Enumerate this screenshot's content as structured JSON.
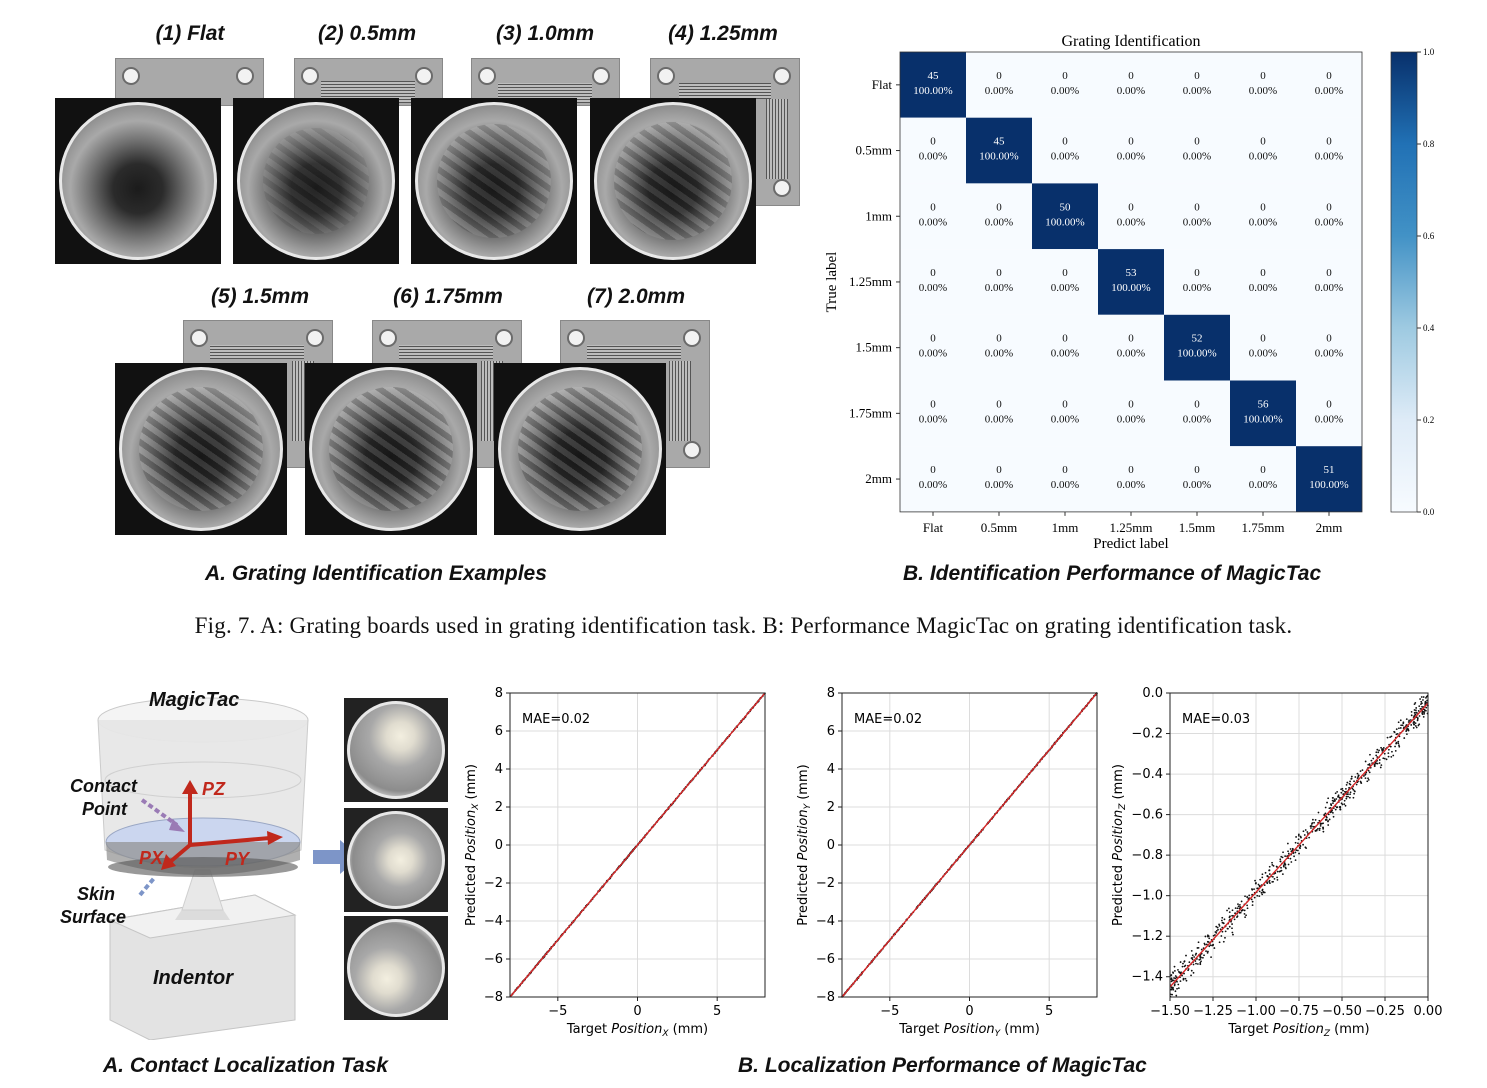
{
  "figure7": {
    "samples_row1": [
      {
        "label": "(1) Flat"
      },
      {
        "label": "(2) 0.5mm"
      },
      {
        "label": "(3) 1.0mm"
      },
      {
        "label": "(4) 1.25mm"
      }
    ],
    "samples_row2": [
      {
        "label": "(5) 1.5mm"
      },
      {
        "label": "(6) 1.75mm"
      },
      {
        "label": "(7) 2.0mm"
      }
    ],
    "panel_a_title": "A. Grating Identification Examples",
    "panel_b_title": "B. Identification Performance of MagicTac",
    "caption": "Fig. 7. A: Grating boards used in grating identification task. B: Performance MagicTac on grating identification task."
  },
  "chart_data": [
    {
      "type": "heatmap",
      "title": "Grating Identification",
      "xlabel": "Predict label",
      "ylabel": "True label",
      "labels": [
        "Flat",
        "0.5mm",
        "1mm",
        "1.25mm",
        "1.5mm",
        "1.75mm",
        "2mm"
      ],
      "counts": [
        [
          45,
          0,
          0,
          0,
          0,
          0,
          0
        ],
        [
          0,
          45,
          0,
          0,
          0,
          0,
          0
        ],
        [
          0,
          0,
          50,
          0,
          0,
          0,
          0
        ],
        [
          0,
          0,
          0,
          53,
          0,
          0,
          0
        ],
        [
          0,
          0,
          0,
          0,
          52,
          0,
          0
        ],
        [
          0,
          0,
          0,
          0,
          0,
          56,
          0
        ],
        [
          0,
          0,
          0,
          0,
          0,
          0,
          51
        ]
      ],
      "diag_percent": "100.00%",
      "off_percent": "0.00%",
      "colorbar_ticks": [
        "0.0",
        "0.2",
        "0.4",
        "0.6",
        "0.8",
        "1.0"
      ],
      "colors": {
        "high": "#08306b",
        "low": "#f7fbff"
      }
    },
    {
      "type": "scatter",
      "annotation": "MAE=0.02",
      "xlabel_pre": "Target ",
      "xlabel_var": "Position",
      "xlabel_sub": "X",
      "xlabel_post": " (mm)",
      "ylabel_pre": "Predicted ",
      "ylabel_var": "Position",
      "ylabel_sub": "X",
      "ylabel_post": " (mm)",
      "xlim": [
        -8,
        8
      ],
      "ylim": [
        -8,
        8
      ],
      "xticks": [
        "−5",
        "0",
        "5"
      ],
      "xtick_values": [
        -5,
        0,
        5
      ],
      "yticks": [
        "−8",
        "−6",
        "−4",
        "−2",
        "0",
        "2",
        "4",
        "6",
        "8"
      ],
      "ytick_values": [
        -8,
        -6,
        -4,
        -2,
        0,
        2,
        4,
        6,
        8
      ],
      "fit_line": [
        [
          -8,
          -8
        ],
        [
          8,
          8
        ]
      ],
      "noise": 0.08
    },
    {
      "type": "scatter",
      "annotation": "MAE=0.02",
      "xlabel_pre": "Target ",
      "xlabel_var": "Position",
      "xlabel_sub": "Y",
      "xlabel_post": " (mm)",
      "ylabel_pre": "Predicted ",
      "ylabel_var": "Position",
      "ylabel_sub": "Y",
      "ylabel_post": " (mm)",
      "xlim": [
        -8,
        8
      ],
      "ylim": [
        -8,
        8
      ],
      "xticks": [
        "−5",
        "0",
        "5"
      ],
      "xtick_values": [
        -5,
        0,
        5
      ],
      "yticks": [
        "−8",
        "−6",
        "−4",
        "−2",
        "0",
        "2",
        "4",
        "6",
        "8"
      ],
      "ytick_values": [
        -8,
        -6,
        -4,
        -2,
        0,
        2,
        4,
        6,
        8
      ],
      "fit_line": [
        [
          -8,
          -8
        ],
        [
          8,
          8
        ]
      ],
      "noise": 0.08
    },
    {
      "type": "scatter",
      "annotation": "MAE=0.03",
      "xlabel_pre": "Target ",
      "xlabel_var": "Position",
      "xlabel_sub": "Z",
      "xlabel_post": " (mm)",
      "ylabel_pre": "Predicted ",
      "ylabel_var": "Position",
      "ylabel_sub": "Z",
      "ylabel_post": " (mm)",
      "xlim": [
        -1.5,
        0.0
      ],
      "ylim": [
        -1.5,
        0.0
      ],
      "xticks": [
        "−1.50",
        "−1.25",
        "−1.00",
        "−0.75",
        "−0.50",
        "−0.25",
        "0.00"
      ],
      "xtick_values": [
        -1.5,
        -1.25,
        -1.0,
        -0.75,
        -0.5,
        -0.25,
        0.0
      ],
      "yticks": [
        "−1.4",
        "−1.2",
        "−1.0",
        "−0.8",
        "−0.6",
        "−0.4",
        "−0.2",
        "0.0"
      ],
      "ytick_values": [
        -1.4,
        -1.2,
        -1.0,
        -0.8,
        -0.6,
        -0.4,
        -0.2,
        0.0
      ],
      "fit_line": [
        [
          -1.5,
          -1.45
        ],
        [
          0.0,
          -0.05
        ]
      ],
      "noise": 0.06
    }
  ],
  "figure8": {
    "device_label": "MagicTac",
    "contact_label_1": "Contact",
    "contact_label_2": "Point",
    "skin_label_1": "Skin",
    "skin_label_2": "Surface",
    "indentor_label": "Indentor",
    "axis_pz": "PZ",
    "axis_px": "PX",
    "axis_py": "PY",
    "panel_a_title": "A. Contact Localization Task",
    "panel_b_title": "B. Localization Performance of MagicTac",
    "colors": {
      "axis_red": "#c0281c",
      "arrow_blue": "#7d95c8",
      "contact_purple": "#9a7bb5",
      "fit_red": "#d62728"
    }
  }
}
